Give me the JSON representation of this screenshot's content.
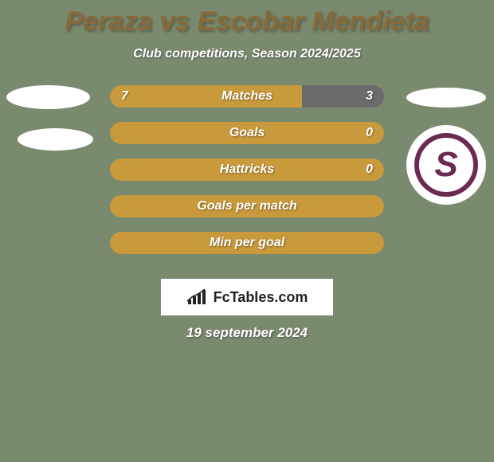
{
  "background_color": "#7a8a6f",
  "title": {
    "text": "Peraza vs Escobar Mendieta",
    "color": "#886a3a"
  },
  "subtitle": "Club competitions, Season 2024/2025",
  "colors": {
    "left_fill": "#c99a3c",
    "right_fill": "#6b6b6b",
    "neutral_fill": "#c99a3c",
    "badge_ring": "#6b2a52",
    "badge_letter": "#6b2a52"
  },
  "bars": [
    {
      "label": "Matches",
      "left_value": "7",
      "right_value": "3",
      "left_pct": 70,
      "right_pct": 30,
      "type": "split"
    },
    {
      "label": "Goals",
      "left_value": "",
      "right_value": "0",
      "left_pct": 100,
      "right_pct": 0,
      "type": "full-left"
    },
    {
      "label": "Hattricks",
      "left_value": "",
      "right_value": "0",
      "left_pct": 100,
      "right_pct": 0,
      "type": "full-left"
    },
    {
      "label": "Goals per match",
      "left_value": "",
      "right_value": "",
      "left_pct": 100,
      "right_pct": 0,
      "type": "neutral"
    },
    {
      "label": "Min per goal",
      "left_value": "",
      "right_value": "",
      "left_pct": 100,
      "right_pct": 0,
      "type": "neutral"
    }
  ],
  "badge": {
    "letter": "S"
  },
  "logo": {
    "text": "FcTables.com"
  },
  "date": "19 september 2024"
}
